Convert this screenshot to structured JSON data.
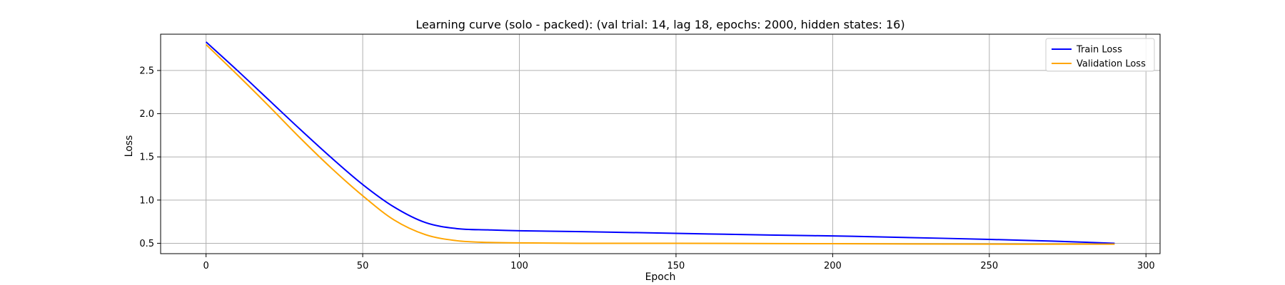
{
  "chart_data": {
    "type": "line",
    "title": "Learning curve (solo - packed): (val trial: 14, lag 18, epochs: 2000, hidden states: 16)",
    "xlabel": "Epoch",
    "ylabel": "Loss",
    "xlim": [
      -14.5,
      304.5
    ],
    "ylim": [
      0.38,
      2.92
    ],
    "xticks": [
      0,
      50,
      100,
      150,
      200,
      250,
      300
    ],
    "yticks": [
      0.5,
      1.0,
      1.5,
      2.0,
      2.5
    ],
    "xtick_labels": [
      "0",
      "50",
      "100",
      "150",
      "200",
      "250",
      "300"
    ],
    "ytick_labels": [
      "0.5",
      "1.0",
      "1.5",
      "2.0",
      "2.5"
    ],
    "grid": true,
    "legend_position": "top-right",
    "series": [
      {
        "name": "Train Loss",
        "color": "#0000ff",
        "x": [
          0,
          10,
          20,
          30,
          40,
          50,
          60,
          70,
          80,
          90,
          100,
          120,
          150,
          180,
          200,
          220,
          250,
          270,
          290
        ],
        "y": [
          2.83,
          2.5,
          2.16,
          1.82,
          1.49,
          1.18,
          0.92,
          0.74,
          0.67,
          0.655,
          0.645,
          0.635,
          0.615,
          0.595,
          0.585,
          0.57,
          0.545,
          0.525,
          0.5
        ]
      },
      {
        "name": "Validation Loss",
        "color": "#ffa500",
        "x": [
          0,
          10,
          20,
          30,
          40,
          50,
          60,
          70,
          80,
          90,
          100,
          120,
          150,
          200,
          250,
          290
        ],
        "y": [
          2.8,
          2.45,
          2.09,
          1.72,
          1.37,
          1.05,
          0.77,
          0.6,
          0.53,
          0.51,
          0.505,
          0.5,
          0.5,
          0.495,
          0.49,
          0.49
        ]
      }
    ]
  }
}
